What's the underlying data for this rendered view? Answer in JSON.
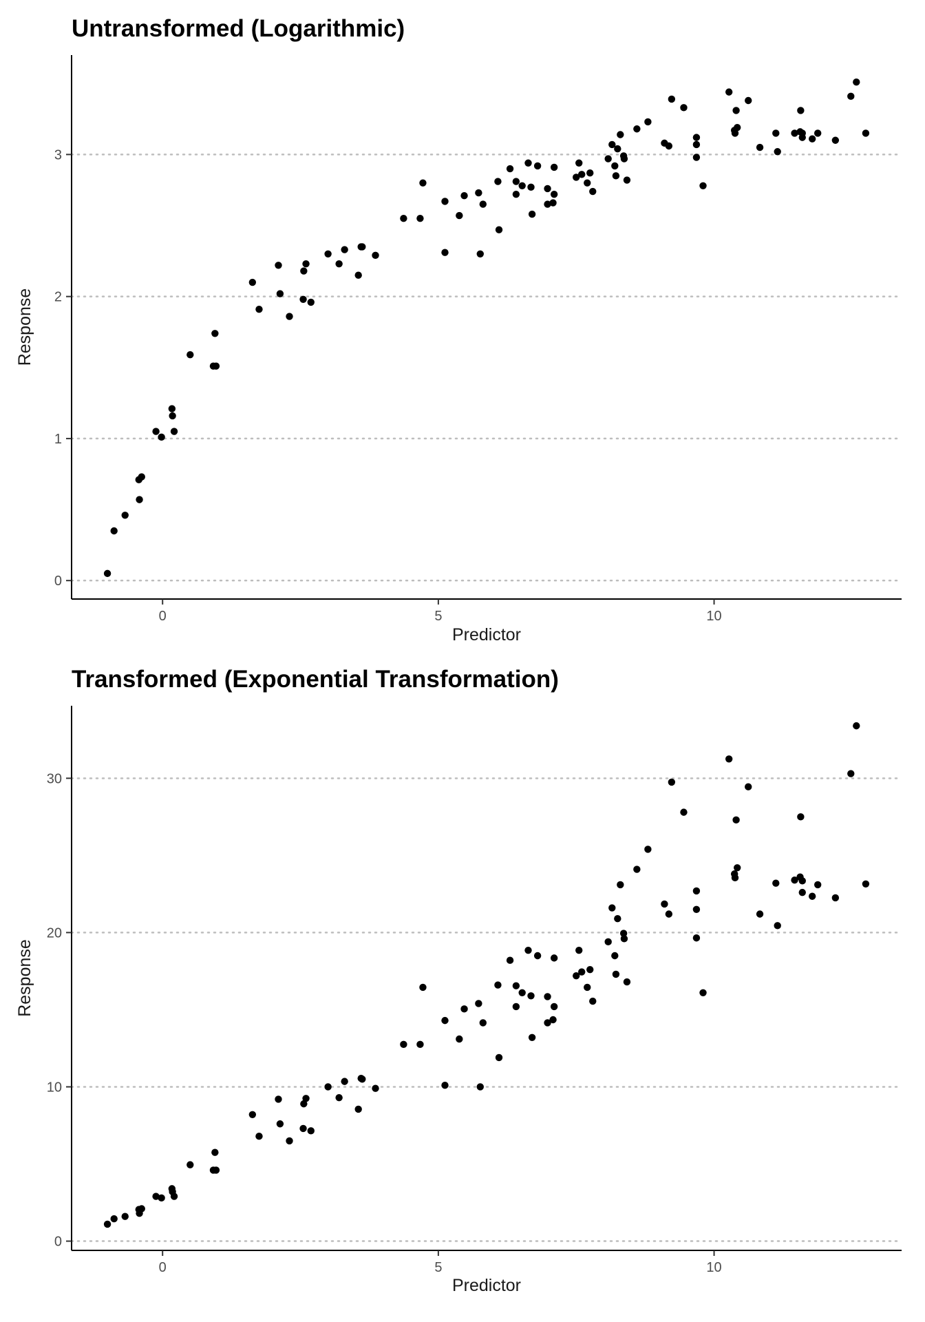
{
  "chart_data": [
    {
      "type": "scatter",
      "title": "Untransformed (Logarithmic)",
      "xlabel": "Predictor",
      "ylabel": "Response",
      "xlim": [
        -1.65,
        13.4
      ],
      "ylim": [
        -0.13,
        3.7
      ],
      "xticks": [
        0,
        5,
        10
      ],
      "yticks": [
        0,
        1,
        2,
        3
      ],
      "xtick_labels": [
        "0",
        "5",
        "10"
      ],
      "ytick_labels": [
        "0",
        "1",
        "2",
        "3"
      ],
      "grid": "horizontal dotted major",
      "legend": "none",
      "point_color": "#000000",
      "points": [
        {
          "x": -1.0,
          "y": 0.05
        },
        {
          "x": -0.88,
          "y": 0.35
        },
        {
          "x": -0.68,
          "y": 0.46
        },
        {
          "x": -0.43,
          "y": 0.71
        },
        {
          "x": -0.38,
          "y": 0.73
        },
        {
          "x": -0.42,
          "y": 0.57
        },
        {
          "x": -0.12,
          "y": 1.05
        },
        {
          "x": -0.02,
          "y": 1.01
        },
        {
          "x": 0.17,
          "y": 1.21
        },
        {
          "x": 0.18,
          "y": 1.16
        },
        {
          "x": 0.21,
          "y": 1.05
        },
        {
          "x": 0.5,
          "y": 1.59
        },
        {
          "x": 0.92,
          "y": 1.51
        },
        {
          "x": 0.95,
          "y": 1.74
        },
        {
          "x": 0.97,
          "y": 1.51
        },
        {
          "x": 1.63,
          "y": 2.1
        },
        {
          "x": 1.75,
          "y": 1.91
        },
        {
          "x": 2.1,
          "y": 2.22
        },
        {
          "x": 2.13,
          "y": 2.02
        },
        {
          "x": 2.3,
          "y": 1.86
        },
        {
          "x": 2.55,
          "y": 1.98
        },
        {
          "x": 2.56,
          "y": 2.18
        },
        {
          "x": 2.6,
          "y": 2.23
        },
        {
          "x": 2.69,
          "y": 1.96
        },
        {
          "x": 3.0,
          "y": 2.3
        },
        {
          "x": 3.2,
          "y": 2.23
        },
        {
          "x": 3.3,
          "y": 2.33
        },
        {
          "x": 3.55,
          "y": 2.15
        },
        {
          "x": 3.6,
          "y": 2.35
        },
        {
          "x": 3.62,
          "y": 2.35
        },
        {
          "x": 3.86,
          "y": 2.29
        },
        {
          "x": 4.37,
          "y": 2.55
        },
        {
          "x": 4.67,
          "y": 2.55
        },
        {
          "x": 4.72,
          "y": 2.8
        },
        {
          "x": 5.12,
          "y": 2.67
        },
        {
          "x": 5.12,
          "y": 2.31
        },
        {
          "x": 5.38,
          "y": 2.57
        },
        {
          "x": 5.47,
          "y": 2.71
        },
        {
          "x": 5.73,
          "y": 2.73
        },
        {
          "x": 5.76,
          "y": 2.3
        },
        {
          "x": 5.81,
          "y": 2.65
        },
        {
          "x": 6.08,
          "y": 2.81
        },
        {
          "x": 6.1,
          "y": 2.47
        },
        {
          "x": 6.3,
          "y": 2.9
        },
        {
          "x": 6.41,
          "y": 2.81
        },
        {
          "x": 6.41,
          "y": 2.72
        },
        {
          "x": 6.52,
          "y": 2.78
        },
        {
          "x": 6.63,
          "y": 2.94
        },
        {
          "x": 6.68,
          "y": 2.77
        },
        {
          "x": 6.7,
          "y": 2.58
        },
        {
          "x": 6.8,
          "y": 2.92
        },
        {
          "x": 6.98,
          "y": 2.76
        },
        {
          "x": 6.98,
          "y": 2.65
        },
        {
          "x": 7.08,
          "y": 2.66
        },
        {
          "x": 7.1,
          "y": 2.72
        },
        {
          "x": 7.1,
          "y": 2.91
        },
        {
          "x": 7.5,
          "y": 2.84
        },
        {
          "x": 7.55,
          "y": 2.94
        },
        {
          "x": 7.6,
          "y": 2.86
        },
        {
          "x": 7.7,
          "y": 2.8
        },
        {
          "x": 7.75,
          "y": 2.87
        },
        {
          "x": 7.8,
          "y": 2.74
        },
        {
          "x": 8.08,
          "y": 2.97
        },
        {
          "x": 8.15,
          "y": 3.07
        },
        {
          "x": 8.2,
          "y": 2.92
        },
        {
          "x": 8.22,
          "y": 2.85
        },
        {
          "x": 8.25,
          "y": 3.04
        },
        {
          "x": 8.3,
          "y": 3.14
        },
        {
          "x": 8.36,
          "y": 2.99
        },
        {
          "x": 8.37,
          "y": 2.97
        },
        {
          "x": 8.42,
          "y": 2.82
        },
        {
          "x": 8.6,
          "y": 3.18
        },
        {
          "x": 8.8,
          "y": 3.23
        },
        {
          "x": 9.1,
          "y": 3.08
        },
        {
          "x": 9.18,
          "y": 3.06
        },
        {
          "x": 9.23,
          "y": 3.39
        },
        {
          "x": 9.45,
          "y": 3.33
        },
        {
          "x": 9.68,
          "y": 3.12
        },
        {
          "x": 9.68,
          "y": 3.07
        },
        {
          "x": 9.68,
          "y": 2.98
        },
        {
          "x": 9.8,
          "y": 2.78
        },
        {
          "x": 10.27,
          "y": 3.44
        },
        {
          "x": 10.37,
          "y": 3.17
        },
        {
          "x": 10.38,
          "y": 3.15
        },
        {
          "x": 10.4,
          "y": 3.31
        },
        {
          "x": 10.42,
          "y": 3.19
        },
        {
          "x": 10.62,
          "y": 3.38
        },
        {
          "x": 10.83,
          "y": 3.05
        },
        {
          "x": 11.12,
          "y": 3.15
        },
        {
          "x": 11.15,
          "y": 3.02
        },
        {
          "x": 11.46,
          "y": 3.15
        },
        {
          "x": 11.56,
          "y": 3.16
        },
        {
          "x": 11.57,
          "y": 3.31
        },
        {
          "x": 11.6,
          "y": 3.12
        },
        {
          "x": 11.6,
          "y": 3.15
        },
        {
          "x": 11.78,
          "y": 3.11
        },
        {
          "x": 11.88,
          "y": 3.15
        },
        {
          "x": 12.2,
          "y": 3.1
        },
        {
          "x": 12.48,
          "y": 3.41
        },
        {
          "x": 12.58,
          "y": 3.51
        },
        {
          "x": 12.75,
          "y": 3.15
        }
      ]
    },
    {
      "type": "scatter",
      "title": "Transformed (Exponential Transformation)",
      "xlabel": "Predictor",
      "ylabel": "Response",
      "xlim": [
        -1.65,
        13.4
      ],
      "ylim": [
        -0.6,
        34.7
      ],
      "xticks": [
        0,
        5,
        10
      ],
      "yticks": [
        0,
        10,
        20,
        30
      ],
      "xtick_labels": [
        "0",
        "5",
        "10"
      ],
      "ytick_labels": [
        "0",
        "10",
        "20",
        "30"
      ],
      "grid": "horizontal dotted major",
      "legend": "none",
      "point_color": "#000000",
      "points": [
        {
          "x": -1.0,
          "y": 1.1
        },
        {
          "x": -0.88,
          "y": 1.45
        },
        {
          "x": -0.68,
          "y": 1.6
        },
        {
          "x": -0.43,
          "y": 2.05
        },
        {
          "x": -0.38,
          "y": 2.1
        },
        {
          "x": -0.42,
          "y": 1.8
        },
        {
          "x": -0.12,
          "y": 2.9
        },
        {
          "x": -0.02,
          "y": 2.8
        },
        {
          "x": 0.17,
          "y": 3.4
        },
        {
          "x": 0.18,
          "y": 3.2
        },
        {
          "x": 0.21,
          "y": 2.9
        },
        {
          "x": 0.5,
          "y": 4.95
        },
        {
          "x": 0.92,
          "y": 4.6
        },
        {
          "x": 0.95,
          "y": 5.75
        },
        {
          "x": 0.97,
          "y": 4.6
        },
        {
          "x": 1.63,
          "y": 8.2
        },
        {
          "x": 1.75,
          "y": 6.8
        },
        {
          "x": 2.1,
          "y": 9.2
        },
        {
          "x": 2.13,
          "y": 7.6
        },
        {
          "x": 2.3,
          "y": 6.5
        },
        {
          "x": 2.55,
          "y": 7.3
        },
        {
          "x": 2.56,
          "y": 8.9
        },
        {
          "x": 2.6,
          "y": 9.25
        },
        {
          "x": 2.69,
          "y": 7.15
        },
        {
          "x": 3.0,
          "y": 10.0
        },
        {
          "x": 3.2,
          "y": 9.3
        },
        {
          "x": 3.3,
          "y": 10.35
        },
        {
          "x": 3.55,
          "y": 8.55
        },
        {
          "x": 3.6,
          "y": 10.55
        },
        {
          "x": 3.62,
          "y": 10.5
        },
        {
          "x": 3.86,
          "y": 9.9
        },
        {
          "x": 4.37,
          "y": 12.75
        },
        {
          "x": 4.67,
          "y": 12.75
        },
        {
          "x": 4.72,
          "y": 16.45
        },
        {
          "x": 5.12,
          "y": 14.3
        },
        {
          "x": 5.12,
          "y": 10.1
        },
        {
          "x": 5.38,
          "y": 13.1
        },
        {
          "x": 5.47,
          "y": 15.05
        },
        {
          "x": 5.73,
          "y": 15.4
        },
        {
          "x": 5.76,
          "y": 10.0
        },
        {
          "x": 5.81,
          "y": 14.15
        },
        {
          "x": 6.08,
          "y": 16.6
        },
        {
          "x": 6.1,
          "y": 11.9
        },
        {
          "x": 6.3,
          "y": 18.2
        },
        {
          "x": 6.41,
          "y": 16.55
        },
        {
          "x": 6.41,
          "y": 15.2
        },
        {
          "x": 6.52,
          "y": 16.1
        },
        {
          "x": 6.63,
          "y": 18.85
        },
        {
          "x": 6.68,
          "y": 15.9
        },
        {
          "x": 6.7,
          "y": 13.2
        },
        {
          "x": 6.8,
          "y": 18.5
        },
        {
          "x": 6.98,
          "y": 15.85
        },
        {
          "x": 6.98,
          "y": 14.15
        },
        {
          "x": 7.08,
          "y": 14.35
        },
        {
          "x": 7.1,
          "y": 15.2
        },
        {
          "x": 7.1,
          "y": 18.35
        },
        {
          "x": 7.5,
          "y": 17.2
        },
        {
          "x": 7.55,
          "y": 18.85
        },
        {
          "x": 7.6,
          "y": 17.45
        },
        {
          "x": 7.7,
          "y": 16.45
        },
        {
          "x": 7.75,
          "y": 17.6
        },
        {
          "x": 7.8,
          "y": 15.55
        },
        {
          "x": 8.08,
          "y": 19.4
        },
        {
          "x": 8.15,
          "y": 21.6
        },
        {
          "x": 8.2,
          "y": 18.5
        },
        {
          "x": 8.22,
          "y": 17.3
        },
        {
          "x": 8.25,
          "y": 20.9
        },
        {
          "x": 8.3,
          "y": 23.1
        },
        {
          "x": 8.36,
          "y": 19.95
        },
        {
          "x": 8.37,
          "y": 19.6
        },
        {
          "x": 8.42,
          "y": 16.8
        },
        {
          "x": 8.6,
          "y": 24.1
        },
        {
          "x": 8.8,
          "y": 25.4
        },
        {
          "x": 9.1,
          "y": 21.85
        },
        {
          "x": 9.18,
          "y": 21.2
        },
        {
          "x": 9.23,
          "y": 29.75
        },
        {
          "x": 9.45,
          "y": 27.8
        },
        {
          "x": 9.68,
          "y": 22.7
        },
        {
          "x": 9.68,
          "y": 21.5
        },
        {
          "x": 9.68,
          "y": 19.65
        },
        {
          "x": 9.8,
          "y": 16.1
        },
        {
          "x": 10.27,
          "y": 31.25
        },
        {
          "x": 10.37,
          "y": 23.8
        },
        {
          "x": 10.38,
          "y": 23.55
        },
        {
          "x": 10.4,
          "y": 27.3
        },
        {
          "x": 10.42,
          "y": 24.2
        },
        {
          "x": 10.62,
          "y": 29.45
        },
        {
          "x": 10.83,
          "y": 21.2
        },
        {
          "x": 11.12,
          "y": 23.2
        },
        {
          "x": 11.15,
          "y": 20.45
        },
        {
          "x": 11.46,
          "y": 23.4
        },
        {
          "x": 11.56,
          "y": 23.6
        },
        {
          "x": 11.57,
          "y": 27.5
        },
        {
          "x": 11.6,
          "y": 22.6
        },
        {
          "x": 11.6,
          "y": 23.35
        },
        {
          "x": 11.78,
          "y": 22.35
        },
        {
          "x": 11.88,
          "y": 23.1
        },
        {
          "x": 12.2,
          "y": 22.25
        },
        {
          "x": 12.48,
          "y": 30.3
        },
        {
          "x": 12.58,
          "y": 33.4
        },
        {
          "x": 12.75,
          "y": 23.15
        }
      ]
    }
  ]
}
